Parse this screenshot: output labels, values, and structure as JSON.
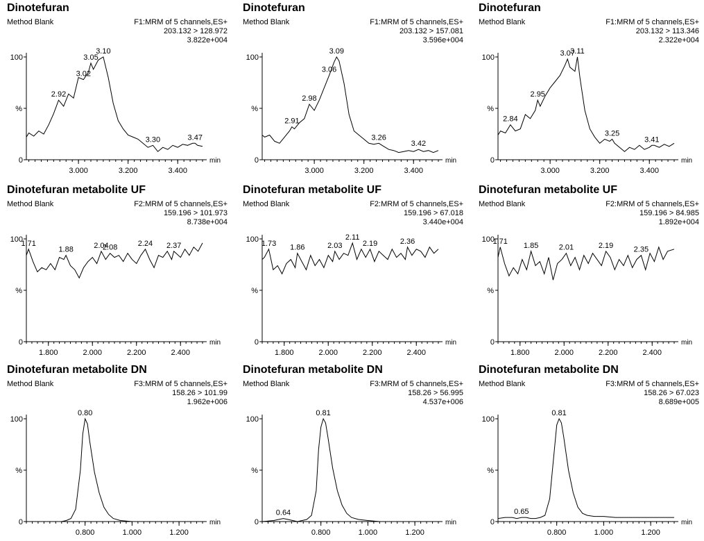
{
  "chart_data": [
    {
      "type": "line",
      "title": "Dinotefuran",
      "subtitle": "Method Blank",
      "function_label": "F1:MRM of 5 channels,ES+",
      "transition": "203.132 > 128.972",
      "intensity": "3.822e+004",
      "xlabel": "min",
      "ylabel": "%",
      "xlim": [
        2.79,
        3.5
      ],
      "ylim": [
        0,
        100
      ],
      "x_ticks": [
        "3.000",
        "3.200",
        "3.400"
      ],
      "x_tick_values": [
        3.0,
        3.2,
        3.4
      ],
      "y_ticks": [
        "0",
        "100"
      ],
      "peak_labels": [
        {
          "x": 2.92,
          "y": 58,
          "text": "2.92"
        },
        {
          "x": 3.02,
          "y": 78,
          "text": "3.02"
        },
        {
          "x": 3.05,
          "y": 94,
          "text": "3.05"
        },
        {
          "x": 3.1,
          "y": 100,
          "text": "3.10"
        },
        {
          "x": 3.3,
          "y": 14,
          "text": "3.30"
        },
        {
          "x": 3.47,
          "y": 16,
          "text": "3.47"
        }
      ],
      "x": [
        2.79,
        2.8,
        2.82,
        2.84,
        2.86,
        2.88,
        2.9,
        2.92,
        2.94,
        2.96,
        2.98,
        3.0,
        3.02,
        3.04,
        3.05,
        3.06,
        3.08,
        3.1,
        3.12,
        3.14,
        3.16,
        3.18,
        3.2,
        3.22,
        3.24,
        3.26,
        3.28,
        3.3,
        3.32,
        3.34,
        3.36,
        3.38,
        3.4,
        3.42,
        3.44,
        3.46,
        3.47,
        3.48,
        3.5
      ],
      "y": [
        22,
        26,
        23,
        28,
        25,
        34,
        45,
        58,
        52,
        64,
        60,
        80,
        78,
        85,
        94,
        88,
        97,
        100,
        80,
        55,
        38,
        30,
        24,
        22,
        20,
        16,
        12,
        14,
        8,
        12,
        10,
        14,
        12,
        15,
        14,
        16,
        16,
        14,
        13
      ]
    },
    {
      "type": "line",
      "title": "Dinotefuran",
      "subtitle": "Method Blank",
      "function_label": "F1:MRM of 5 channels,ES+",
      "transition": "203.132 > 157.081",
      "intensity": "3.596e+004",
      "xlabel": "min",
      "ylabel": "%",
      "xlim": [
        2.79,
        3.5
      ],
      "ylim": [
        0,
        100
      ],
      "x_ticks": [
        "3.000",
        "3.200",
        "3.400"
      ],
      "x_tick_values": [
        3.0,
        3.2,
        3.4
      ],
      "y_ticks": [
        "0",
        "100"
      ],
      "peak_labels": [
        {
          "x": 2.91,
          "y": 32,
          "text": "2.91"
        },
        {
          "x": 2.98,
          "y": 54,
          "text": "2.98"
        },
        {
          "x": 3.06,
          "y": 82,
          "text": "3.06"
        },
        {
          "x": 3.09,
          "y": 100,
          "text": "3.09"
        },
        {
          "x": 3.26,
          "y": 16,
          "text": "3.26"
        },
        {
          "x": 3.42,
          "y": 10,
          "text": "3.42"
        }
      ],
      "x": [
        2.79,
        2.8,
        2.82,
        2.84,
        2.86,
        2.88,
        2.9,
        2.91,
        2.92,
        2.94,
        2.96,
        2.98,
        3.0,
        3.02,
        3.04,
        3.06,
        3.08,
        3.09,
        3.1,
        3.12,
        3.14,
        3.16,
        3.18,
        3.2,
        3.22,
        3.24,
        3.26,
        3.28,
        3.3,
        3.32,
        3.34,
        3.36,
        3.38,
        3.4,
        3.42,
        3.44,
        3.46,
        3.48,
        3.5
      ],
      "y": [
        24,
        22,
        24,
        18,
        16,
        22,
        28,
        32,
        30,
        36,
        40,
        54,
        48,
        58,
        70,
        82,
        95,
        100,
        96,
        74,
        44,
        28,
        24,
        20,
        16,
        15,
        16,
        13,
        10,
        9,
        7,
        8,
        9,
        8,
        10,
        8,
        9,
        7,
        9
      ]
    },
    {
      "type": "line",
      "title": "Dinotefuran",
      "subtitle": "Method Blank",
      "function_label": "F1:MRM of 5 channels,ES+",
      "transition": "203.132 > 113.346",
      "intensity": "2.322e+004",
      "xlabel": "min",
      "ylabel": "%",
      "xlim": [
        2.79,
        3.5
      ],
      "ylim": [
        0,
        100
      ],
      "x_ticks": [
        "3.000",
        "3.200",
        "3.400"
      ],
      "x_tick_values": [
        3.0,
        3.2,
        3.4
      ],
      "y_ticks": [
        "0",
        "100"
      ],
      "peak_labels": [
        {
          "x": 2.84,
          "y": 34,
          "text": "2.84"
        },
        {
          "x": 2.95,
          "y": 58,
          "text": "2.95"
        },
        {
          "x": 3.07,
          "y": 98,
          "text": "3.07"
        },
        {
          "x": 3.11,
          "y": 100,
          "text": "3.11"
        },
        {
          "x": 3.25,
          "y": 20,
          "text": "3.25"
        },
        {
          "x": 3.41,
          "y": 14,
          "text": "3.41"
        }
      ],
      "x": [
        2.79,
        2.8,
        2.82,
        2.84,
        2.86,
        2.88,
        2.9,
        2.92,
        2.94,
        2.95,
        2.96,
        2.98,
        3.0,
        3.02,
        3.04,
        3.06,
        3.07,
        3.08,
        3.1,
        3.11,
        3.12,
        3.14,
        3.16,
        3.18,
        3.2,
        3.22,
        3.24,
        3.25,
        3.26,
        3.28,
        3.3,
        3.32,
        3.34,
        3.36,
        3.38,
        3.4,
        3.41,
        3.42,
        3.44,
        3.46,
        3.48,
        3.5
      ],
      "y": [
        24,
        28,
        26,
        34,
        28,
        30,
        44,
        40,
        48,
        58,
        52,
        62,
        70,
        76,
        82,
        92,
        98,
        90,
        86,
        100,
        80,
        48,
        30,
        22,
        16,
        20,
        18,
        20,
        16,
        12,
        8,
        12,
        10,
        14,
        10,
        12,
        14,
        14,
        12,
        15,
        13,
        16
      ]
    },
    {
      "type": "line",
      "title": "Dinotefuran metabolite UF",
      "subtitle": "Method Blank",
      "function_label": "F2:MRM of 5 channels,ES+",
      "transition": "159.196 > 101.973",
      "intensity": "8.738e+004",
      "xlabel": "min",
      "ylabel": "%",
      "xlim": [
        1.7,
        2.5
      ],
      "ylim": [
        0,
        100
      ],
      "x_ticks": [
        "1.800",
        "2.000",
        "2.200",
        "2.400"
      ],
      "x_tick_values": [
        1.8,
        2.0,
        2.2,
        2.4
      ],
      "y_ticks": [
        "0",
        "100"
      ],
      "peak_labels": [
        {
          "x": 1.71,
          "y": 90,
          "text": "1.71"
        },
        {
          "x": 1.88,
          "y": 84,
          "text": "1.88"
        },
        {
          "x": 2.04,
          "y": 88,
          "text": "2.04"
        },
        {
          "x": 2.08,
          "y": 86,
          "text": "2.08"
        },
        {
          "x": 2.24,
          "y": 90,
          "text": "2.24"
        },
        {
          "x": 2.37,
          "y": 88,
          "text": "2.37"
        }
      ],
      "x": [
        1.7,
        1.71,
        1.73,
        1.75,
        1.77,
        1.79,
        1.81,
        1.83,
        1.85,
        1.87,
        1.88,
        1.9,
        1.92,
        1.94,
        1.96,
        1.98,
        2.0,
        2.02,
        2.04,
        2.06,
        2.08,
        2.1,
        2.12,
        2.14,
        2.16,
        2.18,
        2.2,
        2.22,
        2.24,
        2.26,
        2.28,
        2.3,
        2.32,
        2.34,
        2.36,
        2.37,
        2.38,
        2.4,
        2.42,
        2.44,
        2.46,
        2.48,
        2.5
      ],
      "y": [
        84,
        90,
        78,
        68,
        72,
        70,
        76,
        70,
        82,
        80,
        84,
        74,
        70,
        62,
        72,
        78,
        82,
        76,
        88,
        80,
        86,
        82,
        84,
        78,
        86,
        80,
        76,
        84,
        90,
        80,
        72,
        84,
        82,
        88,
        80,
        88,
        86,
        82,
        90,
        84,
        92,
        88,
        96
      ]
    },
    {
      "type": "line",
      "title": "Dinotefuran metabolite UF",
      "subtitle": "Method Blank",
      "function_label": "F2:MRM of 5 channels,ES+",
      "transition": "159.196 > 67.018",
      "intensity": "3.440e+004",
      "xlabel": "min",
      "ylabel": "%",
      "xlim": [
        1.7,
        2.5
      ],
      "ylim": [
        0,
        100
      ],
      "x_ticks": [
        "1.800",
        "2.000",
        "2.200",
        "2.400"
      ],
      "x_tick_values": [
        1.8,
        2.0,
        2.2,
        2.4
      ],
      "y_ticks": [
        "0",
        "100"
      ],
      "peak_labels": [
        {
          "x": 1.73,
          "y": 90,
          "text": "1.73"
        },
        {
          "x": 1.86,
          "y": 86,
          "text": "1.86"
        },
        {
          "x": 2.03,
          "y": 88,
          "text": "2.03"
        },
        {
          "x": 2.11,
          "y": 96,
          "text": "2.11"
        },
        {
          "x": 2.19,
          "y": 90,
          "text": "2.19"
        },
        {
          "x": 2.36,
          "y": 92,
          "text": "2.36"
        }
      ],
      "x": [
        1.7,
        1.71,
        1.73,
        1.75,
        1.77,
        1.79,
        1.81,
        1.83,
        1.85,
        1.86,
        1.88,
        1.9,
        1.92,
        1.94,
        1.96,
        1.98,
        2.0,
        2.02,
        2.03,
        2.05,
        2.07,
        2.09,
        2.11,
        2.13,
        2.15,
        2.17,
        2.19,
        2.21,
        2.23,
        2.25,
        2.27,
        2.29,
        2.31,
        2.33,
        2.35,
        2.36,
        2.38,
        2.4,
        2.42,
        2.44,
        2.46,
        2.48,
        2.5
      ],
      "y": [
        80,
        82,
        90,
        70,
        74,
        66,
        76,
        80,
        72,
        86,
        78,
        70,
        84,
        74,
        80,
        72,
        84,
        78,
        88,
        80,
        86,
        84,
        96,
        80,
        90,
        82,
        90,
        78,
        88,
        84,
        80,
        90,
        82,
        86,
        80,
        92,
        84,
        90,
        88,
        82,
        92,
        86,
        90
      ]
    },
    {
      "type": "line",
      "title": "Dinotefuran metabolite UF",
      "subtitle": "Method Blank",
      "function_label": "F2:MRM of 5 channels,ES+",
      "transition": "159.196 > 84.985",
      "intensity": "1.892e+004",
      "xlabel": "min",
      "ylabel": "%",
      "xlim": [
        1.7,
        2.5
      ],
      "ylim": [
        0,
        100
      ],
      "x_ticks": [
        "1.800",
        "2.000",
        "2.200",
        "2.400"
      ],
      "x_tick_values": [
        1.8,
        2.0,
        2.2,
        2.4
      ],
      "y_ticks": [
        "0",
        "100"
      ],
      "peak_labels": [
        {
          "x": 1.71,
          "y": 92,
          "text": "1.71"
        },
        {
          "x": 1.85,
          "y": 88,
          "text": "1.85"
        },
        {
          "x": 2.01,
          "y": 86,
          "text": "2.01"
        },
        {
          "x": 2.19,
          "y": 88,
          "text": "2.19"
        },
        {
          "x": 2.35,
          "y": 84,
          "text": "2.35"
        }
      ],
      "x": [
        1.7,
        1.71,
        1.73,
        1.75,
        1.77,
        1.79,
        1.81,
        1.83,
        1.85,
        1.87,
        1.89,
        1.91,
        1.93,
        1.95,
        1.97,
        1.99,
        2.01,
        2.03,
        2.05,
        2.07,
        2.09,
        2.11,
        2.13,
        2.15,
        2.17,
        2.19,
        2.21,
        2.23,
        2.25,
        2.27,
        2.29,
        2.31,
        2.33,
        2.35,
        2.37,
        2.39,
        2.41,
        2.43,
        2.45,
        2.47,
        2.5
      ],
      "y": [
        82,
        92,
        76,
        64,
        72,
        66,
        80,
        70,
        88,
        74,
        78,
        66,
        82,
        60,
        76,
        80,
        86,
        74,
        82,
        70,
        84,
        76,
        86,
        80,
        74,
        88,
        82,
        70,
        80,
        74,
        84,
        72,
        80,
        84,
        70,
        86,
        78,
        92,
        80,
        88,
        90
      ]
    },
    {
      "type": "line",
      "title": "Dinotefuran metabolite DN",
      "subtitle": "Method Blank",
      "function_label": "F3:MRM of 5 channels,ES+",
      "transition": "158.26 > 101.99",
      "intensity": "1.962e+006",
      "xlabel": "min",
      "ylabel": "%",
      "xlim": [
        0.55,
        1.3
      ],
      "ylim": [
        0,
        100
      ],
      "x_ticks": [
        "0.800",
        "1.000",
        "1.200"
      ],
      "x_tick_values": [
        0.8,
        1.0,
        1.2
      ],
      "y_ticks": [
        "0",
        "100"
      ],
      "peak_labels": [
        {
          "x": 0.8,
          "y": 100,
          "text": "0.80"
        }
      ],
      "x": [
        0.55,
        0.6,
        0.65,
        0.7,
        0.72,
        0.74,
        0.76,
        0.78,
        0.79,
        0.8,
        0.81,
        0.82,
        0.84,
        0.86,
        0.88,
        0.9,
        0.92,
        0.95,
        1.0,
        1.05,
        1.1,
        1.2,
        1.3
      ],
      "y": [
        0,
        0,
        0,
        0,
        1,
        3,
        12,
        50,
        85,
        100,
        95,
        78,
        48,
        28,
        14,
        7,
        3,
        1,
        0,
        0,
        0,
        0,
        0
      ]
    },
    {
      "type": "line",
      "title": "Dinotefuran metabolite DN",
      "subtitle": "Method Blank",
      "function_label": "F3:MRM of 5 channels,ES+",
      "transition": "158.26 > 56.995",
      "intensity": "4.537e+006",
      "xlabel": "min",
      "ylabel": "%",
      "xlim": [
        0.55,
        1.3
      ],
      "ylim": [
        0,
        100
      ],
      "x_ticks": [
        "0.800",
        "1.000",
        "1.200"
      ],
      "x_tick_values": [
        0.8,
        1.0,
        1.2
      ],
      "y_ticks": [
        "0",
        "100"
      ],
      "peak_labels": [
        {
          "x": 0.64,
          "y": 3,
          "text": "0.64"
        },
        {
          "x": 0.81,
          "y": 100,
          "text": "0.81"
        }
      ],
      "x": [
        0.55,
        0.6,
        0.62,
        0.64,
        0.66,
        0.68,
        0.7,
        0.72,
        0.74,
        0.76,
        0.78,
        0.79,
        0.8,
        0.81,
        0.82,
        0.83,
        0.85,
        0.87,
        0.89,
        0.91,
        0.93,
        0.96,
        1.0,
        1.05,
        1.1,
        1.2,
        1.3
      ],
      "y": [
        0,
        1,
        2,
        3,
        2,
        1,
        0,
        1,
        2,
        6,
        30,
        70,
        92,
        100,
        96,
        82,
        52,
        30,
        16,
        8,
        4,
        2,
        1,
        0,
        0,
        0,
        0
      ]
    },
    {
      "type": "line",
      "title": "Dinotefuran metabolite DN",
      "subtitle": "Method Blank",
      "function_label": "F3:MRM of 5 channels,ES+",
      "transition": "158.26 > 67.023",
      "intensity": "8.689e+005",
      "xlabel": "min",
      "ylabel": "%",
      "xlim": [
        0.55,
        1.3
      ],
      "ylim": [
        0,
        100
      ],
      "x_ticks": [
        "0.800",
        "1.000",
        "1.200"
      ],
      "x_tick_values": [
        0.8,
        1.0,
        1.2
      ],
      "y_ticks": [
        "0",
        "100"
      ],
      "peak_labels": [
        {
          "x": 0.65,
          "y": 4,
          "text": "0.65"
        },
        {
          "x": 0.81,
          "y": 100,
          "text": "0.81"
        }
      ],
      "x": [
        0.55,
        0.58,
        0.61,
        0.63,
        0.65,
        0.67,
        0.69,
        0.71,
        0.73,
        0.75,
        0.77,
        0.79,
        0.8,
        0.81,
        0.82,
        0.83,
        0.85,
        0.87,
        0.89,
        0.91,
        0.93,
        0.96,
        1.0,
        1.05,
        1.1,
        1.2,
        1.3
      ],
      "y": [
        3,
        4,
        4,
        3,
        4,
        4,
        3,
        3,
        4,
        6,
        22,
        70,
        94,
        100,
        96,
        82,
        50,
        28,
        14,
        8,
        6,
        5,
        5,
        4,
        4,
        4,
        4
      ]
    }
  ]
}
